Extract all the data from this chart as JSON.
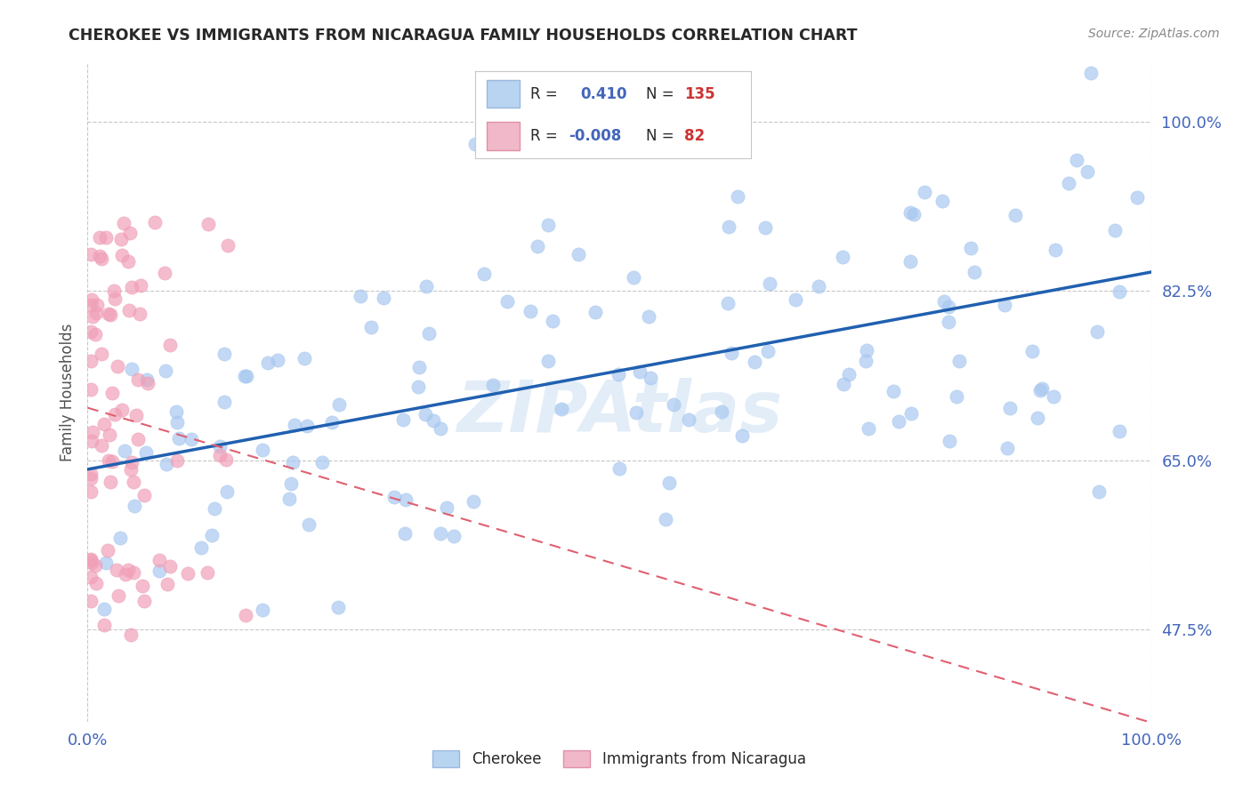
{
  "title": "CHEROKEE VS IMMIGRANTS FROM NICARAGUA FAMILY HOUSEHOLDS CORRELATION CHART",
  "source": "Source: ZipAtlas.com",
  "ylabel": "Family Households",
  "watermark": "ZIPAtlas",
  "y_ticks": [
    "47.5%",
    "65.0%",
    "82.5%",
    "100.0%"
  ],
  "y_tick_vals": [
    0.475,
    0.65,
    0.825,
    1.0
  ],
  "x_range": [
    0.0,
    1.0
  ],
  "y_range": [
    0.38,
    1.06
  ],
  "legend_blue_label": "Cherokee",
  "legend_pink_label": "Immigrants from Nicaragua",
  "blue_R": "0.410",
  "blue_N": "135",
  "pink_R": "-0.008",
  "pink_N": "82",
  "blue_dot_color": "#a8c8f0",
  "pink_dot_color": "#f0a0b8",
  "blue_line_color": "#2060b0",
  "pink_line_color": "#e06070",
  "grid_color": "#c8c8c8",
  "title_color": "#282828",
  "source_color": "#888888",
  "axis_label_color": "#4466bb",
  "blue_legend_color": "#b8d4f0",
  "pink_legend_color": "#f0b8c8"
}
